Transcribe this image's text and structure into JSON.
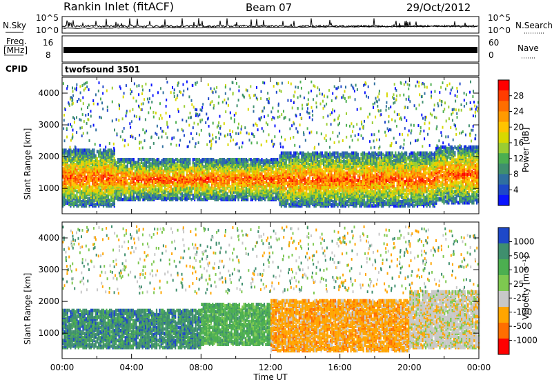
{
  "header": {
    "station": "Rankin Inlet (fitACF)",
    "beam": "Beam 07",
    "date": "29/Oct/2012"
  },
  "strips": {
    "nsky_label": "N.Sky",
    "nsearch_label": "N.Search",
    "freq_label_line1": "Freq.",
    "freq_label_line2": "[MHz]",
    "nave_label": "Nave",
    "cpid_label": "CPID",
    "cpid_value": "twofsound 3501",
    "nsky_ticks": [
      "10^5",
      "10^0"
    ],
    "nsearch_ticks": [
      "10^5",
      "10^0"
    ],
    "freq_ticks": [
      "16",
      "8"
    ],
    "nave_ticks": [
      "60",
      "0"
    ]
  },
  "chart_data": [
    {
      "type": "heatmap",
      "panel": "power",
      "ylabel": "Slant Range [km]",
      "xlabel": "",
      "x_ticks": [
        "00:00",
        "04:00",
        "08:00",
        "12:00",
        "16:00",
        "20:00",
        "00:00"
      ],
      "y_ticks": [
        1000,
        2000,
        3000,
        4000
      ],
      "ylim": [
        200,
        4500
      ],
      "colorbar": {
        "label": "Power [dB]",
        "ticks": [
          "28",
          "24",
          "20",
          "16",
          "12",
          "8",
          "4"
        ],
        "colors": [
          "#ff0000",
          "#ff3c00",
          "#ff6e00",
          "#ff9a00",
          "#ffc400",
          "#d8d800",
          "#9acd32",
          "#4caf50",
          "#3f8f6e",
          "#2f6fa0",
          "#1e48c8",
          "#0a14ff"
        ]
      },
      "echo_bands": [
        {
          "t_start": 0.0,
          "t_end": 3.0,
          "r_low": 500,
          "r_high": 2300,
          "dominant": "high"
        },
        {
          "t_start": 3.0,
          "t_end": 12.5,
          "r_low": 700,
          "r_high": 2000,
          "dominant": "high"
        },
        {
          "t_start": 12.5,
          "t_end": 21.5,
          "r_low": 500,
          "r_high": 2200,
          "dominant": "high"
        },
        {
          "t_start": 21.5,
          "t_end": 24.0,
          "r_low": 600,
          "r_high": 2400,
          "dominant": "high"
        }
      ]
    },
    {
      "type": "heatmap",
      "panel": "velocity",
      "ylabel": "Slant Range [km]",
      "xlabel": "Time UT",
      "x_ticks": [
        "00:00",
        "04:00",
        "08:00",
        "12:00",
        "16:00",
        "20:00",
        "00:00"
      ],
      "y_ticks": [
        1000,
        2000,
        3000,
        4000
      ],
      "ylim": [
        200,
        4500
      ],
      "colorbar": {
        "label": "Velocity [m s⁻¹]",
        "ticks": [
          "1000",
          "500",
          "100",
          "25",
          "-25",
          "-100",
          "-500",
          "-1000"
        ],
        "colors": [
          "#1e48c8",
          "#3f8f6e",
          "#4caf50",
          "#7ec850",
          "#c8c8c8",
          "#ffa500",
          "#ff6e00",
          "#ff0000"
        ]
      },
      "echo_bands": [
        {
          "t_start": 0.0,
          "t_end": 8.0,
          "r_low": 600,
          "r_high": 1800,
          "dominant": "500"
        },
        {
          "t_start": 8.0,
          "t_end": 12.0,
          "r_low": 700,
          "r_high": 2000,
          "dominant": "100"
        },
        {
          "t_start": 12.0,
          "t_end": 20.0,
          "r_low": 500,
          "r_high": 2100,
          "dominant": "-100"
        },
        {
          "t_start": 20.0,
          "t_end": 24.0,
          "r_low": 600,
          "r_high": 2400,
          "dominant": "-25"
        }
      ]
    }
  ]
}
